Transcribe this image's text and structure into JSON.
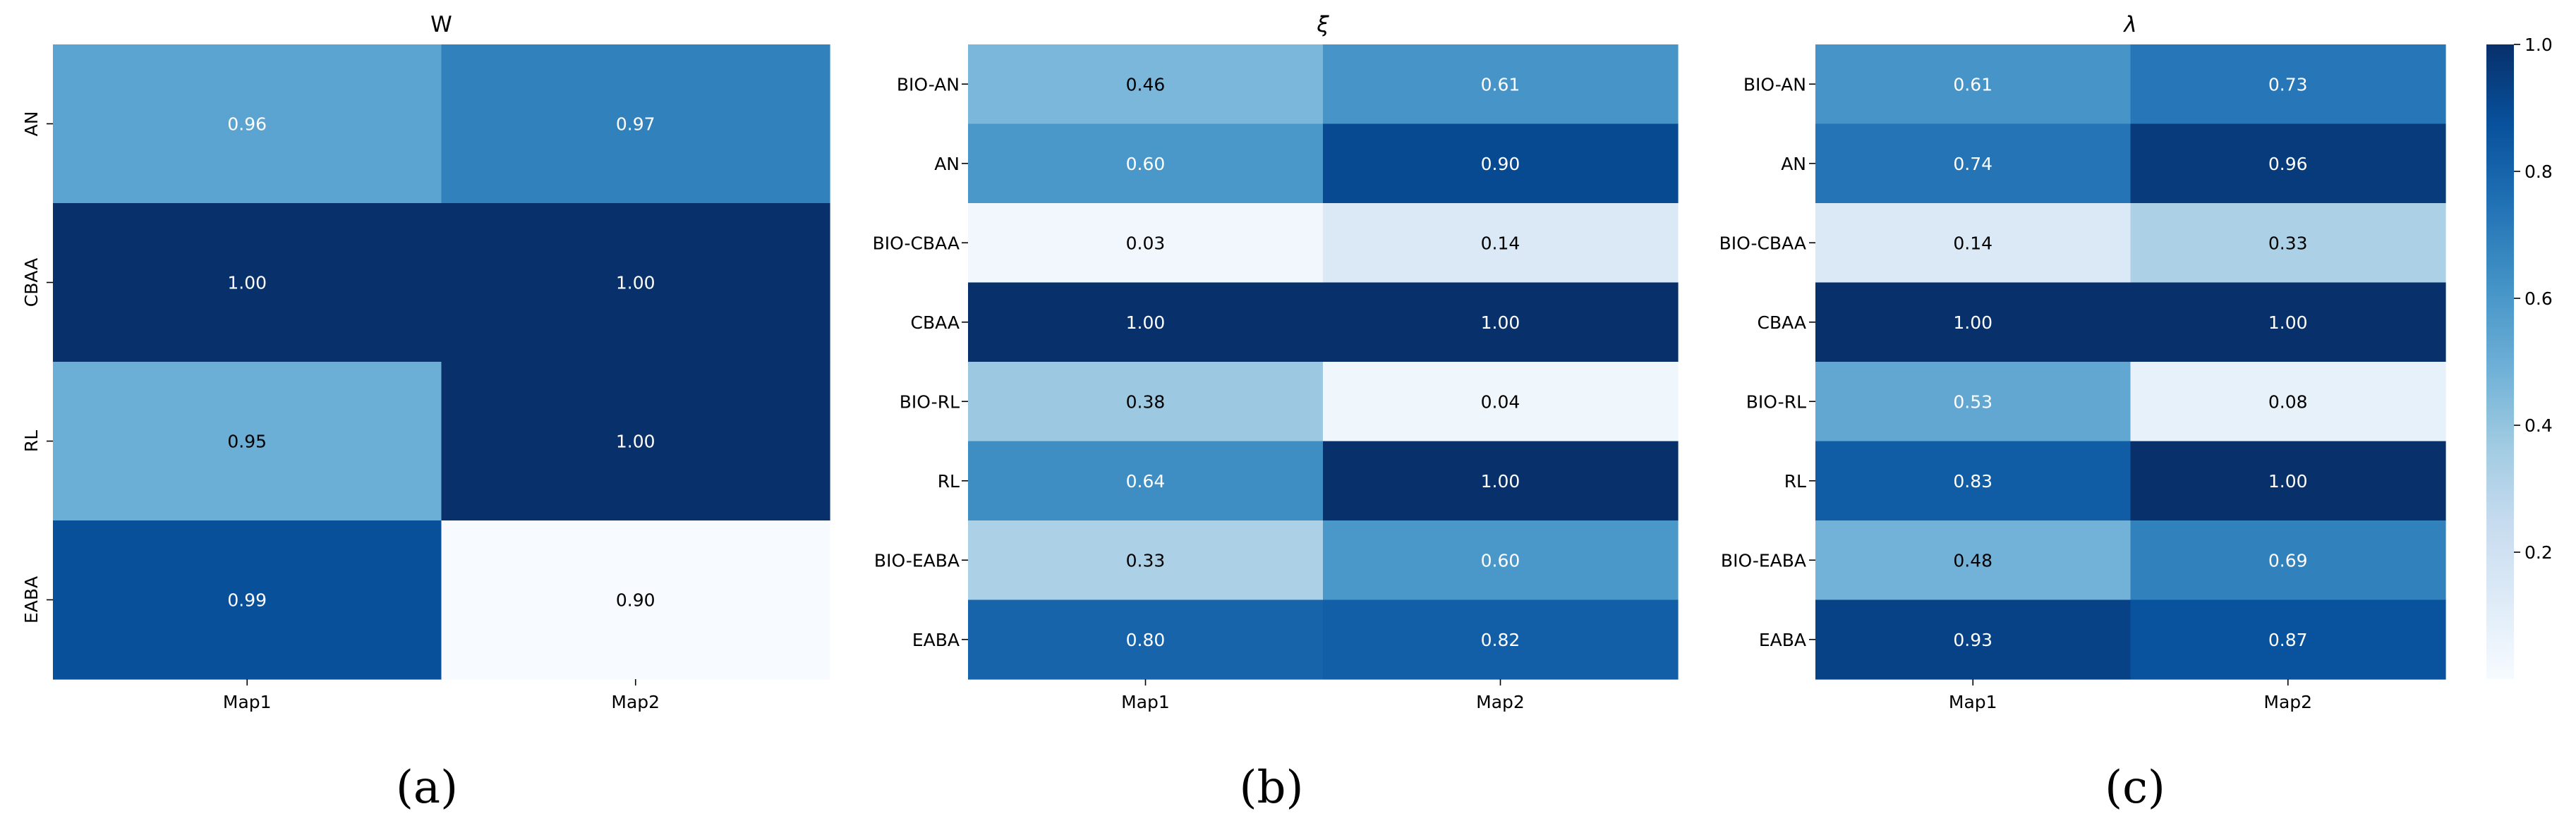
{
  "chart_data": [
    {
      "type": "heatmap",
      "title": "W",
      "caption": "(a)",
      "columns": [
        "Map1",
        "Map2"
      ],
      "rows": [
        "AN",
        "CBAA",
        "RL",
        "EABA"
      ],
      "values": [
        [
          0.96,
          0.97
        ],
        [
          1.0,
          1.0
        ],
        [
          0.95,
          1.0
        ],
        [
          0.99,
          0.9
        ]
      ],
      "color_levels": [
        [
          0.55,
          0.69
        ],
        [
          1.0,
          1.0
        ],
        [
          0.5,
          1.0
        ],
        [
          0.88,
          0.0
        ]
      ],
      "row_label_rotation": "vertical"
    },
    {
      "type": "heatmap",
      "title": "ξ",
      "caption": "(b)",
      "columns": [
        "Map1",
        "Map2"
      ],
      "rows": [
        "BIO-AN",
        "AN",
        "BIO-CBAA",
        "CBAA",
        "BIO-RL",
        "RL",
        "BIO-EABA",
        "EABA"
      ],
      "values": [
        [
          0.46,
          0.61
        ],
        [
          0.6,
          0.9
        ],
        [
          0.03,
          0.14
        ],
        [
          1.0,
          1.0
        ],
        [
          0.38,
          0.04
        ],
        [
          0.64,
          1.0
        ],
        [
          0.33,
          0.6
        ],
        [
          0.8,
          0.82
        ]
      ],
      "row_label_rotation": "horizontal"
    },
    {
      "type": "heatmap",
      "title": "λ",
      "caption": "(c)",
      "columns": [
        "Map1",
        "Map2"
      ],
      "rows": [
        "BIO-AN",
        "AN",
        "BIO-CBAA",
        "CBAA",
        "BIO-RL",
        "RL",
        "BIO-EABA",
        "EABA"
      ],
      "values": [
        [
          0.61,
          0.73
        ],
        [
          0.74,
          0.96
        ],
        [
          0.14,
          0.33
        ],
        [
          1.0,
          1.0
        ],
        [
          0.53,
          0.08
        ],
        [
          0.83,
          1.0
        ],
        [
          0.48,
          0.69
        ],
        [
          0.93,
          0.87
        ]
      ],
      "row_label_rotation": "horizontal",
      "colorbar": {
        "colormap": "Blues",
        "range": [
          0.0,
          1.0
        ],
        "ticks": [
          0.2,
          0.4,
          0.6,
          0.8,
          1.0
        ],
        "tick_labels": [
          "0.2",
          "0.4",
          "0.6",
          "0.8",
          "1.0"
        ]
      }
    }
  ],
  "colors": {
    "blues": [
      "#f7fbff",
      "#deebf7",
      "#c6dbef",
      "#9ecae1",
      "#6baed6",
      "#4292c6",
      "#2171b5",
      "#08519c",
      "#08306b"
    ],
    "text_dark": "#000000",
    "text_light": "#ffffff"
  }
}
